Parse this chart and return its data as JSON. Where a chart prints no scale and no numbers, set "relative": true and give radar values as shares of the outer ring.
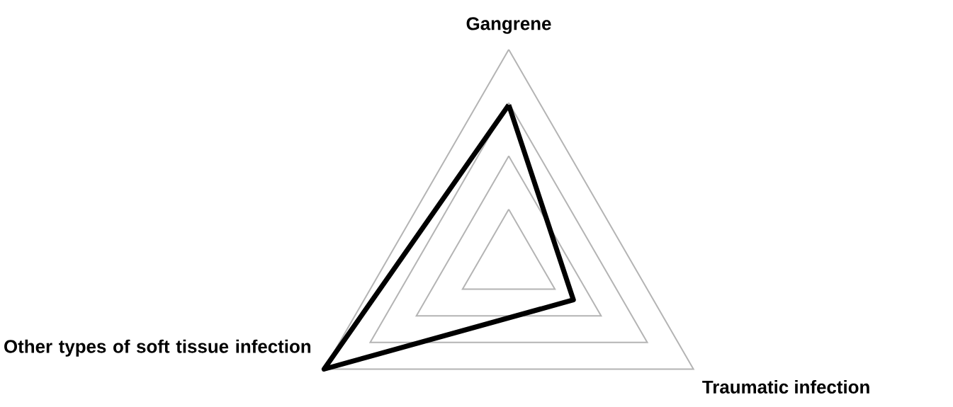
{
  "chart_data": {
    "type": "radar",
    "relative": true,
    "grid": true,
    "categories": [
      "Gangrene",
      "Traumatic infection",
      "Other types of soft tissue infection"
    ],
    "series": [
      {
        "color": "#000000",
        "values": [
          0.74,
          0.35,
          1.0
        ]
      }
    ]
  }
}
